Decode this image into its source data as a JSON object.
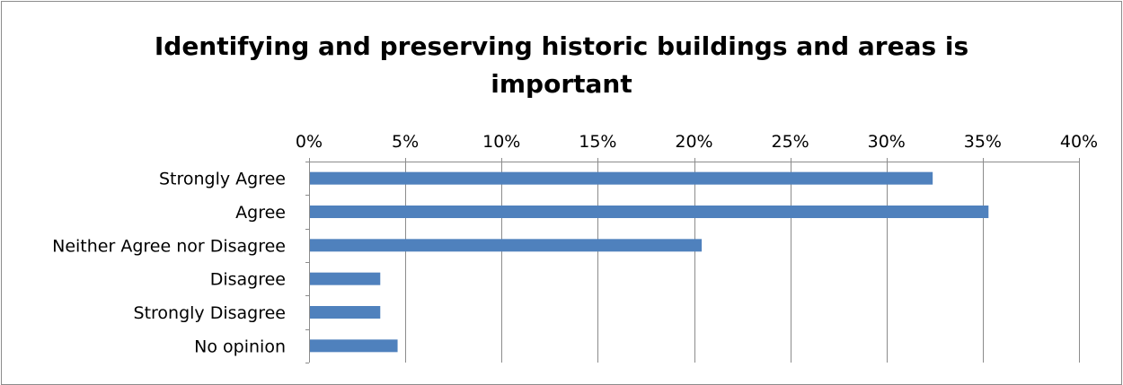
{
  "chart_data": {
    "type": "bar",
    "orientation": "horizontal",
    "title_lines": [
      "Identifying and preserving historic buildings and areas is",
      "important"
    ],
    "categories": [
      "Strongly Agree",
      "Agree",
      "Neither Agree nor Disagree",
      "Disagree",
      "Strongly Disagree",
      "No opinion"
    ],
    "values": [
      32.4,
      35.3,
      20.4,
      3.7,
      3.7,
      4.6
    ],
    "xlim": [
      0,
      40
    ],
    "x_ticks": [
      0,
      5,
      10,
      15,
      20,
      25,
      30,
      35,
      40
    ],
    "x_tick_labels": [
      "0%",
      "5%",
      "10%",
      "15%",
      "20%",
      "25%",
      "30%",
      "35%",
      "40%"
    ],
    "x_axis_position": "top",
    "grid": "vertical",
    "legend": "none",
    "bar_color": "#4f81bd",
    "grid_color": "#8c8c8c"
  }
}
